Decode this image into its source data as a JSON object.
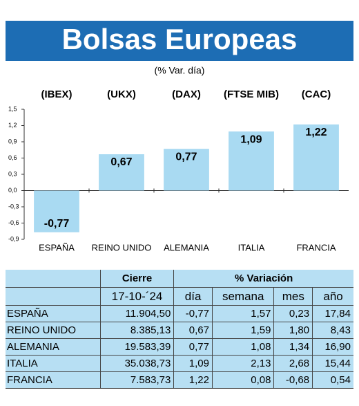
{
  "chart_data": {
    "type": "bar",
    "title": "Bolsas Europeas",
    "subtitle": "(% Var. día)",
    "tickers": [
      "(IBEX)",
      "(UKX)",
      "(DAX)",
      "(FTSE MIB)",
      "(CAC)"
    ],
    "categories": [
      "ESPAÑA",
      "REINO UNIDO",
      "ALEMANIA",
      "ITALIA",
      "FRANCIA"
    ],
    "values": [
      -0.77,
      0.67,
      0.77,
      1.09,
      1.22
    ],
    "value_labels": [
      "-0,77",
      "0,67",
      "0,77",
      "1,09",
      "1,22"
    ],
    "color": "#a9daf2",
    "ylim": [
      -0.9,
      1.5
    ],
    "yticks": [
      {
        "value": -0.9,
        "label": "-0,9"
      },
      {
        "value": -0.6,
        "label": "-0,6"
      },
      {
        "value": -0.3,
        "label": "-0,3"
      },
      {
        "value": 0,
        "label": "0,0"
      },
      {
        "value": 0.3,
        "label": "0,3"
      },
      {
        "value": 0.6,
        "label": "0,6"
      },
      {
        "value": 0.9,
        "label": "0,9"
      },
      {
        "value": 1.2,
        "label": "1,2"
      },
      {
        "value": 1.5,
        "label": "1,5"
      }
    ]
  },
  "table": {
    "header": [
      "Cierre",
      "% Variación"
    ],
    "subheader": [
      "17-10-´24",
      "día",
      "semana",
      "mes",
      "año"
    ],
    "rows": [
      [
        "ESPAÑA",
        "11.904,50",
        "-0,77",
        "1,57",
        "0,23",
        "17,84"
      ],
      [
        "REINO UNIDO",
        "8.385,13",
        "0,67",
        "1,59",
        "1,80",
        "8,43"
      ],
      [
        "ALEMANIA",
        "19.583,39",
        "0,77",
        "1,08",
        "1,34",
        "16,90"
      ],
      [
        "ITALIA",
        "35.038,73",
        "1,09",
        "2,13",
        "2,68",
        "15,44"
      ],
      [
        "FRANCIA",
        "7.583,73",
        "1,22",
        "0,08",
        "-0,68",
        "0,54"
      ]
    ]
  }
}
